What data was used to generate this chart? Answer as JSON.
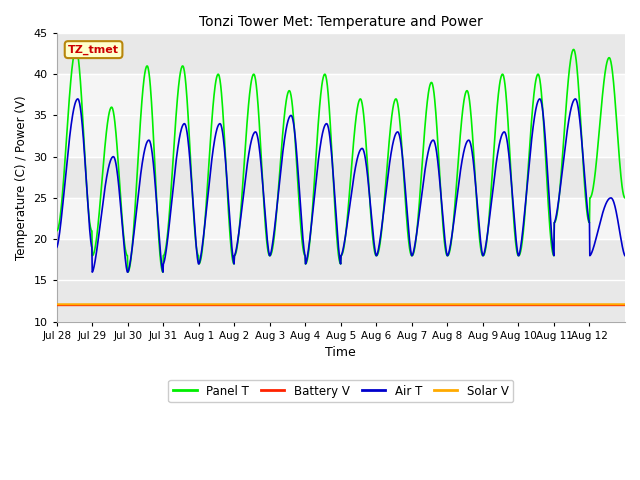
{
  "title": "Tonzi Tower Met: Temperature and Power",
  "xlabel": "Time",
  "ylabel": "Temperature (C) / Power (V)",
  "ylim": [
    10,
    45
  ],
  "yticks": [
    10,
    15,
    20,
    25,
    30,
    35,
    40,
    45
  ],
  "annotation_text": "TZ_tmet",
  "annotation_bg": "#ffffcc",
  "annotation_border": "#b8860b",
  "annotation_text_color": "#cc0000",
  "legend_entries": [
    "Panel T",
    "Battery V",
    "Air T",
    "Solar V"
  ],
  "legend_colors": [
    "#00ee00",
    "#ff2200",
    "#0000cc",
    "#ffaa00"
  ],
  "panel_color": "#00ee00",
  "battery_color": "#ff2200",
  "air_color": "#0000cc",
  "solar_color": "#ffaa00",
  "battery_value": 12.0,
  "solar_value": 12.1,
  "xtick_labels": [
    "Jul 28",
    "Jul 29",
    "Jul 30",
    "Jul 31",
    "Aug 1",
    "Aug 2",
    "Aug 3",
    "Aug 4",
    "Aug 5",
    "Aug 6",
    "Aug 7",
    "Aug 8",
    "Aug 9",
    "Aug 10",
    "Aug 11",
    "Aug 12"
  ],
  "fig_bg": "#ffffff",
  "axes_bg": "#e8e8e8",
  "band1": [
    20,
    25
  ],
  "band2": [
    30,
    40
  ],
  "figsize": [
    6.4,
    4.8
  ],
  "dpi": 100,
  "panel_peak_targets": [
    43,
    36,
    41,
    41,
    40,
    40,
    38,
    40,
    37,
    37,
    39,
    38,
    40,
    40,
    43,
    42
  ],
  "panel_trough_targets": [
    21,
    18,
    16,
    18,
    17,
    18,
    18,
    17,
    18,
    18,
    18,
    18,
    18,
    18,
    22,
    25
  ],
  "air_peak_targets": [
    37,
    30,
    32,
    34,
    34,
    33,
    35,
    34,
    31,
    33,
    32,
    32,
    33,
    37,
    37,
    25
  ],
  "air_trough_targets": [
    19,
    16,
    16,
    17,
    17,
    18,
    18,
    17,
    18,
    18,
    18,
    18,
    18,
    18,
    22,
    18
  ],
  "n_days": 16,
  "pts_per_day": 96
}
